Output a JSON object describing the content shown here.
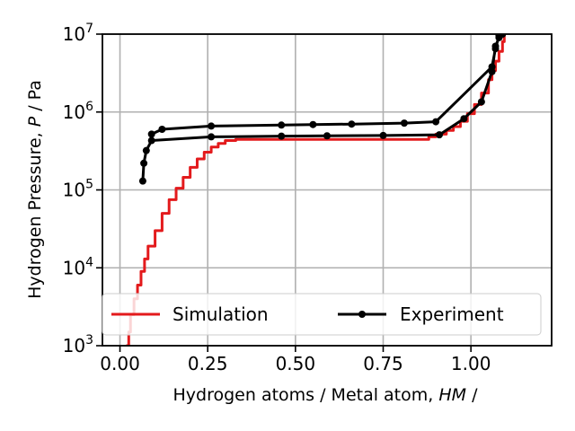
{
  "chart_data": {
    "type": "line",
    "xlabel_main": "Hydrogen atoms / Metal atom, ",
    "xlabel_symbol": "HM",
    "xlabel_unit": " /",
    "ylabel_main": "Hydrogen Pressure, ",
    "ylabel_symbol": "P",
    "ylabel_unit": " / Pa",
    "xlim": [
      -0.05,
      1.23
    ],
    "ylim": [
      1000,
      10000000
    ],
    "yscale": "log",
    "grid": true,
    "legend_position": "lower-center",
    "x_ticks": [
      {
        "value": 0.0,
        "label": "0.00"
      },
      {
        "value": 0.25,
        "label": "0.25"
      },
      {
        "value": 0.5,
        "label": "0.50"
      },
      {
        "value": 0.75,
        "label": "0.75"
      },
      {
        "value": 1.0,
        "label": "1.00"
      }
    ],
    "y_ticks": [
      {
        "value": 1000,
        "base": "10",
        "exp": "3"
      },
      {
        "value": 10000,
        "base": "10",
        "exp": "4"
      },
      {
        "value": 100000,
        "base": "10",
        "exp": "5"
      },
      {
        "value": 1000000,
        "base": "10",
        "exp": "6"
      },
      {
        "value": 10000000,
        "base": "10",
        "exp": "7"
      }
    ],
    "series": [
      {
        "name": "Simulation",
        "color": "#e31a1c",
        "markers": false,
        "step": true,
        "points": [
          [
            0.02,
            1000
          ],
          [
            0.025,
            1500
          ],
          [
            0.03,
            2500
          ],
          [
            0.04,
            4000
          ],
          [
            0.05,
            6000
          ],
          [
            0.06,
            9000
          ],
          [
            0.07,
            13000
          ],
          [
            0.08,
            19000
          ],
          [
            0.1,
            30000
          ],
          [
            0.12,
            50000
          ],
          [
            0.14,
            75000
          ],
          [
            0.16,
            105000
          ],
          [
            0.18,
            145000
          ],
          [
            0.2,
            195000
          ],
          [
            0.22,
            250000
          ],
          [
            0.24,
            305000
          ],
          [
            0.26,
            355000
          ],
          [
            0.28,
            395000
          ],
          [
            0.3,
            430000
          ],
          [
            0.33,
            445000
          ],
          [
            0.5,
            445000
          ],
          [
            0.7,
            445000
          ],
          [
            0.87,
            445000
          ],
          [
            0.88,
            480000
          ],
          [
            0.9,
            520000
          ],
          [
            0.93,
            580000
          ],
          [
            0.95,
            650000
          ],
          [
            0.97,
            760000
          ],
          [
            0.99,
            950000
          ],
          [
            1.01,
            1250000
          ],
          [
            1.03,
            1750000
          ],
          [
            1.05,
            2600000
          ],
          [
            1.06,
            3400000
          ],
          [
            1.07,
            4500000
          ],
          [
            1.08,
            6000000
          ],
          [
            1.09,
            8000000
          ],
          [
            1.095,
            10000000
          ]
        ]
      },
      {
        "name": "Experiment",
        "color": "#000000",
        "markers": true,
        "step": false,
        "points": [
          [
            0.065,
            130000
          ],
          [
            0.068,
            220000
          ],
          [
            0.075,
            320000
          ],
          [
            0.09,
            430000
          ],
          [
            0.26,
            480000
          ],
          [
            0.46,
            490000
          ],
          [
            0.59,
            495000
          ],
          [
            0.75,
            500000
          ],
          [
            0.91,
            510000
          ],
          [
            0.98,
            820000
          ],
          [
            1.03,
            1350000
          ],
          [
            1.06,
            3300000
          ],
          [
            1.07,
            7000000
          ],
          [
            1.08,
            9000000
          ],
          [
            1.09,
            10000000
          ],
          [
            1.08,
            9500000
          ],
          [
            1.07,
            6500000
          ],
          [
            1.06,
            3800000
          ],
          [
            0.9,
            750000
          ],
          [
            0.81,
            720000
          ],
          [
            0.66,
            700000
          ],
          [
            0.55,
            690000
          ],
          [
            0.46,
            680000
          ],
          [
            0.26,
            660000
          ],
          [
            0.12,
            600000
          ],
          [
            0.09,
            520000
          ]
        ]
      }
    ]
  }
}
